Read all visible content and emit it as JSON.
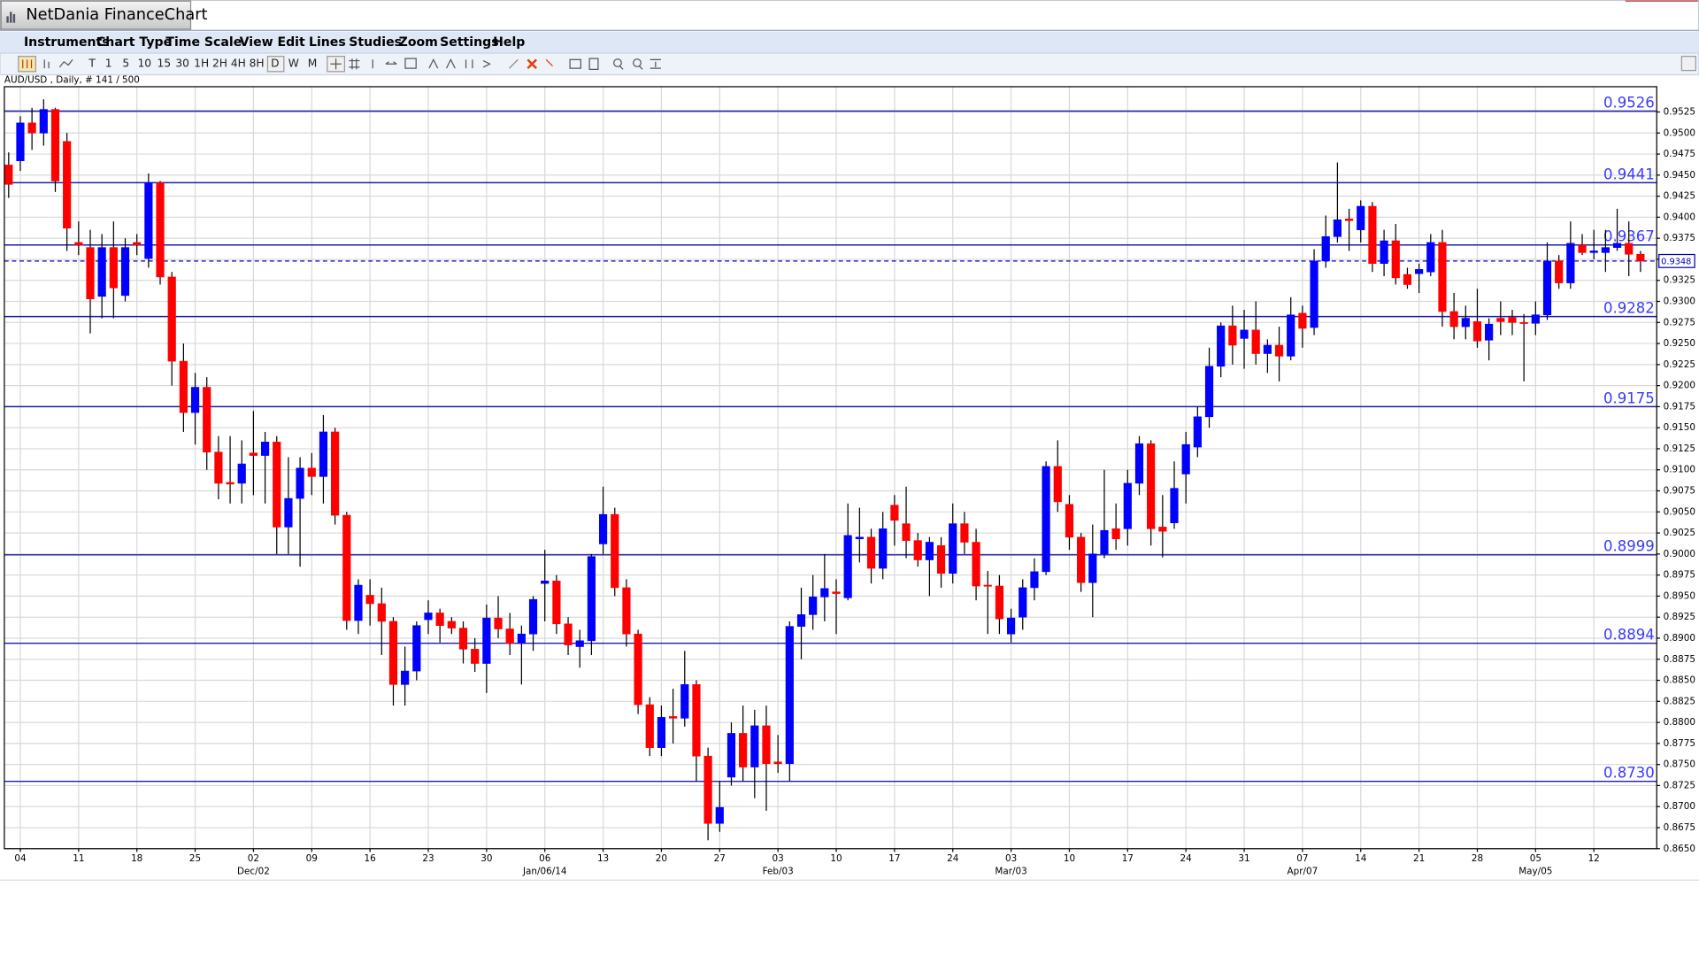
{
  "ui": {
    "app_title": "NetDania FinanceChart",
    "menu": [
      "Instruments",
      "Chart Type",
      "Time Scale",
      "View",
      "Edit",
      "Lines",
      "Studies",
      "Zoom",
      "Settings",
      "Help"
    ],
    "toolbar": [
      "T",
      "1",
      "5",
      "10",
      "15",
      "30",
      "1H",
      "2H",
      "4H",
      "8H",
      "D",
      "W",
      "M"
    ],
    "info": "AUD/USD , Daily, # 141 / 500"
  },
  "chart_data": {
    "type": "candlestick",
    "categories": [
      null,
      "04",
      null,
      null,
      null,
      null,
      "11",
      null,
      null,
      null,
      null,
      "18",
      null,
      null,
      null,
      null,
      "25",
      null,
      null,
      null,
      null,
      "02",
      null,
      null,
      null,
      null,
      "09",
      null,
      null,
      null,
      null,
      "16",
      null,
      null,
      null,
      null,
      "23",
      null,
      null,
      null,
      null,
      "30",
      null,
      null,
      null,
      null,
      "06",
      null,
      null,
      null,
      null,
      "13",
      null,
      null,
      null,
      null,
      "20",
      null,
      null,
      null,
      null,
      "27",
      null,
      null,
      null,
      null,
      "03",
      null,
      null,
      null,
      null,
      "10",
      null,
      null,
      null,
      null,
      "17",
      null,
      null,
      null,
      null,
      "24",
      null,
      null,
      null,
      null,
      "03",
      null,
      null,
      null,
      null,
      "10",
      null,
      null,
      null,
      null,
      "17",
      null,
      null,
      null,
      null,
      "24",
      null,
      null,
      null,
      null,
      "31",
      null,
      null,
      null,
      null,
      "07",
      null,
      null,
      null,
      null,
      "14",
      null,
      null,
      null,
      null,
      "21",
      null,
      null,
      null,
      null,
      "28",
      null,
      null,
      null,
      null,
      "05",
      null,
      null,
      null,
      null,
      "12",
      null,
      null,
      null,
      null
    ],
    "categories2": [
      null,
      null,
      null,
      null,
      null,
      null,
      null,
      null,
      null,
      null,
      null,
      null,
      null,
      null,
      null,
      null,
      null,
      null,
      null,
      null,
      null,
      "Dec/02",
      null,
      null,
      null,
      null,
      null,
      null,
      null,
      null,
      null,
      null,
      null,
      null,
      null,
      null,
      null,
      null,
      null,
      null,
      null,
      null,
      null,
      null,
      null,
      null,
      "Jan/06/14",
      null,
      null,
      null,
      null,
      null,
      null,
      null,
      null,
      null,
      null,
      null,
      null,
      null,
      null,
      null,
      null,
      null,
      null,
      null,
      "Feb/03",
      null,
      null,
      null,
      null,
      null,
      null,
      null,
      null,
      null,
      null,
      null,
      null,
      null,
      null,
      null,
      null,
      null,
      null,
      null,
      "Mar/03",
      null,
      null,
      null,
      null,
      null,
      null,
      null,
      null,
      null,
      null,
      null,
      null,
      null,
      null,
      null,
      null,
      null,
      null,
      null,
      null,
      null,
      null,
      null,
      null,
      "Apr/07",
      null,
      null,
      null,
      null,
      null,
      null,
      null,
      null,
      null,
      null,
      null,
      null,
      null,
      null,
      null,
      null,
      null,
      null,
      null,
      "May/05",
      null,
      null,
      null,
      null,
      null,
      null,
      null,
      null,
      null
    ],
    "open": [
      0.9462,
      0.9467,
      0.9512,
      0.95,
      0.9528,
      0.949,
      0.937,
      0.9364,
      0.9306,
      0.9364,
      0.9307,
      0.937,
      0.9351,
      0.9441,
      0.9329,
      0.9229,
      0.9168,
      0.9198,
      0.9121,
      0.9085,
      0.9084,
      0.912,
      0.9117,
      0.9133,
      0.9032,
      0.9066,
      0.9102,
      0.9092,
      0.9145,
      0.9046,
      0.8921,
      0.8951,
      0.8941,
      0.892,
      0.8845,
      0.8861,
      0.8922,
      0.893,
      0.892,
      0.8912,
      0.8887,
      0.887,
      0.8924,
      0.8911,
      0.8894,
      0.8905,
      0.8965,
      0.8968,
      0.8917,
      0.889,
      0.8897,
      0.9012,
      0.9047,
      0.896,
      0.8905,
      0.8821,
      0.877,
      0.8807,
      0.8805,
      0.8845,
      0.876,
      0.868,
      0.8735,
      0.8787,
      0.8747,
      0.8796,
      0.8753,
      0.8751,
      0.8914,
      0.8928,
      0.8949,
      0.8955,
      0.8948,
      0.9018,
      0.902,
      0.8983,
      0.9058,
      0.9036,
      0.9016,
      0.8993,
      0.901,
      0.8977,
      0.9036,
      0.9014,
      0.8963,
      0.8962,
      0.8905,
      0.8925,
      0.896,
      0.8979,
      0.9104,
      0.9059,
      0.902,
      0.8966,
      0.9,
      0.903,
      0.903,
      0.9084,
      0.9131,
      0.9032,
      0.9037,
      0.9095,
      0.9127,
      0.9163,
      0.9223,
      0.9271,
      0.9256,
      0.9266,
      0.9238,
      0.9248,
      0.9235,
      0.9286,
      0.9269,
      0.9348,
      0.9377,
      0.9398,
      0.9385,
      0.9413,
      0.9345,
      0.9372,
      0.9332,
      0.9333,
      0.9335,
      0.937,
      0.9288,
      0.927,
      0.9276,
      0.9254,
      0.928,
      0.9281,
      0.9275,
      0.9274,
      0.9284,
      0.9348,
      0.9322,
      0.9367,
      0.9358,
      0.9358,
      0.9364,
      0.9369,
      0.9356
    ],
    "high": [
      0.9477,
      0.952,
      0.953,
      0.954,
      0.953,
      0.95,
      0.9395,
      0.9385,
      0.938,
      0.9395,
      0.9375,
      0.938,
      0.9452,
      0.9443,
      0.9335,
      0.925,
      0.9215,
      0.921,
      0.914,
      0.914,
      0.9135,
      0.917,
      0.9145,
      0.914,
      0.9115,
      0.9115,
      0.912,
      0.9165,
      0.915,
      0.905,
      0.897,
      0.897,
      0.896,
      0.8925,
      0.889,
      0.892,
      0.8945,
      0.8935,
      0.8925,
      0.892,
      0.89,
      0.894,
      0.895,
      0.893,
      0.8915,
      0.895,
      0.9005,
      0.8975,
      0.8925,
      0.891,
      0.9,
      0.908,
      0.9055,
      0.897,
      0.891,
      0.883,
      0.882,
      0.884,
      0.8885,
      0.885,
      0.877,
      0.873,
      0.88,
      0.882,
      0.8815,
      0.882,
      0.8785,
      0.892,
      0.896,
      0.8975,
      0.9,
      0.897,
      0.906,
      0.9055,
      0.903,
      0.905,
      0.907,
      0.908,
      0.9025,
      0.902,
      0.902,
      0.906,
      0.905,
      0.903,
      0.898,
      0.8975,
      0.8935,
      0.897,
      0.8995,
      0.911,
      0.9135,
      0.907,
      0.9025,
      0.9035,
      0.91,
      0.906,
      0.91,
      0.914,
      0.9135,
      0.907,
      0.911,
      0.9145,
      0.9175,
      0.9245,
      0.9275,
      0.9295,
      0.929,
      0.93,
      0.9255,
      0.927,
      0.9305,
      0.9295,
      0.9362,
      0.9402,
      0.9465,
      0.941,
      0.942,
      0.9418,
      0.9385,
      0.9392,
      0.934,
      0.9345,
      0.938,
      0.9385,
      0.931,
      0.9295,
      0.9315,
      0.928,
      0.93,
      0.929,
      0.9285,
      0.93,
      0.937,
      0.9355,
      0.9395,
      0.938,
      0.9385,
      0.9385,
      0.941,
      0.9395,
      0.936
    ],
    "low": [
      0.9423,
      0.9455,
      0.948,
      0.9485,
      0.943,
      0.936,
      0.9355,
      0.9262,
      0.928,
      0.928,
      0.93,
      0.9355,
      0.934,
      0.932,
      0.92,
      0.9145,
      0.913,
      0.91,
      0.9065,
      0.906,
      0.906,
      0.907,
      0.906,
      0.9,
      0.9,
      0.8985,
      0.907,
      0.906,
      0.9035,
      0.891,
      0.8905,
      0.8915,
      0.888,
      0.882,
      0.882,
      0.885,
      0.8905,
      0.8895,
      0.8905,
      0.887,
      0.886,
      0.8835,
      0.89,
      0.888,
      0.8845,
      0.8885,
      0.892,
      0.8905,
      0.888,
      0.8865,
      0.888,
      0.9,
      0.895,
      0.889,
      0.881,
      0.876,
      0.876,
      0.8775,
      0.8795,
      0.873,
      0.866,
      0.867,
      0.8725,
      0.873,
      0.871,
      0.8695,
      0.874,
      0.873,
      0.8875,
      0.891,
      0.892,
      0.8905,
      0.8945,
      0.899,
      0.8965,
      0.897,
      0.901,
      0.8995,
      0.8985,
      0.895,
      0.896,
      0.8965,
      0.9,
      0.8945,
      0.8905,
      0.8905,
      0.8895,
      0.891,
      0.8945,
      0.8975,
      0.905,
      0.9005,
      0.8955,
      0.8925,
      0.8995,
      0.9005,
      0.901,
      0.907,
      0.901,
      0.8996,
      0.903,
      0.906,
      0.9115,
      0.915,
      0.921,
      0.9225,
      0.922,
      0.9225,
      0.9215,
      0.9205,
      0.923,
      0.9245,
      0.926,
      0.934,
      0.937,
      0.936,
      0.937,
      0.9335,
      0.933,
      0.932,
      0.9315,
      0.931,
      0.933,
      0.927,
      0.9255,
      0.9255,
      0.9245,
      0.923,
      0.926,
      0.926,
      0.9205,
      0.926,
      0.9278,
      0.9315,
      0.9315,
      0.9355,
      0.935,
      0.9335,
      0.936,
      0.933,
      0.9335
    ],
    "close": [
      0.9439,
      0.9512,
      0.95,
      0.9528,
      0.9443,
      0.9387,
      0.9367,
      0.9303,
      0.9364,
      0.9316,
      0.9364,
      0.9367,
      0.9441,
      0.9329,
      0.9229,
      0.9168,
      0.9198,
      0.9121,
      0.9084,
      0.9083,
      0.9107,
      0.9117,
      0.9133,
      0.9032,
      0.9066,
      0.9102,
      0.9092,
      0.9145,
      0.9046,
      0.8921,
      0.8963,
      0.8941,
      0.892,
      0.8845,
      0.8861,
      0.8915,
      0.893,
      0.8915,
      0.8912,
      0.8887,
      0.887,
      0.8924,
      0.8911,
      0.8894,
      0.8905,
      0.8946,
      0.8968,
      0.8917,
      0.8892,
      0.8897,
      0.8997,
      0.9047,
      0.896,
      0.8905,
      0.8821,
      0.877,
      0.8806,
      0.8805,
      0.8845,
      0.876,
      0.868,
      0.8699,
      0.8787,
      0.8747,
      0.8796,
      0.8751,
      0.8751,
      0.8914,
      0.8928,
      0.8949,
      0.8959,
      0.8953,
      0.9022,
      0.902,
      0.8983,
      0.903,
      0.904,
      0.9016,
      0.8993,
      0.9014,
      0.8977,
      0.9036,
      0.9014,
      0.8962,
      0.8962,
      0.8923,
      0.8924,
      0.896,
      0.8979,
      0.9104,
      0.9062,
      0.902,
      0.8966,
      0.9,
      0.9028,
      0.9018,
      0.9084,
      0.9131,
      0.903,
      0.9027,
      0.9078,
      0.913,
      0.9163,
      0.9223,
      0.9271,
      0.9248,
      0.9266,
      0.9238,
      0.9248,
      0.9235,
      0.9284,
      0.9268,
      0.9348,
      0.9377,
      0.9397,
      0.9396,
      0.9413,
      0.9345,
      0.9372,
      0.9328,
      0.932,
      0.9338,
      0.937,
      0.9288,
      0.927,
      0.928,
      0.9253,
      0.9273,
      0.9276,
      0.9275,
      0.9274,
      0.9284,
      0.9348,
      0.9322,
      0.9369,
      0.9358,
      0.936,
      0.9364,
      0.9369,
      0.9356,
      0.9348
    ],
    "up_color": "#0000ff",
    "down_color": "#ff0000",
    "ylim": [
      0.865,
      0.9555
    ],
    "yticks": [
      {
        "value": 0.865,
        "label": "0.8650"
      },
      0.8675,
      {
        "value": 0.87,
        "label": "0.8700"
      },
      0.8725,
      {
        "value": 0.875,
        "label": "0.8750"
      },
      0.8775,
      {
        "value": 0.88,
        "label": "0.8800"
      },
      0.8825,
      {
        "value": 0.885,
        "label": "0.8850"
      },
      0.8875,
      {
        "value": 0.89,
        "label": "0.8900"
      },
      0.8925,
      {
        "value": 0.895,
        "label": "0.8950"
      },
      0.8975,
      {
        "value": 0.9,
        "label": "0.9000"
      },
      0.9025,
      {
        "value": 0.905,
        "label": "0.9050"
      },
      0.9075,
      {
        "value": 0.91,
        "label": "0.9100"
      },
      0.9125,
      {
        "value": 0.915,
        "label": "0.9150"
      },
      0.9175,
      {
        "value": 0.92,
        "label": "0.9200"
      },
      0.9225,
      {
        "value": 0.925,
        "label": "0.9250"
      },
      0.9275,
      {
        "value": 0.93,
        "label": "0.9300"
      },
      0.9325,
      {
        "value": 0.935,
        "label": "0.9350"
      },
      0.9375,
      {
        "value": 0.94,
        "label": "0.9400"
      },
      0.9425,
      {
        "value": 0.945,
        "label": "0.9450"
      },
      0.9475,
      {
        "value": 0.95,
        "label": "0.9500"
      },
      0.9525
    ],
    "grid": true,
    "levels": [
      0.9526,
      0.9441,
      0.9367,
      0.9282,
      0.9175,
      0.8999,
      0.8894,
      {
        "value": 0.873,
        "label": "0.8730"
      }
    ],
    "level_color": "#1c1ca8",
    "level_label_color": "#3a3aff",
    "last_price": 0.9348,
    "last_price_color": "#0000b0"
  }
}
